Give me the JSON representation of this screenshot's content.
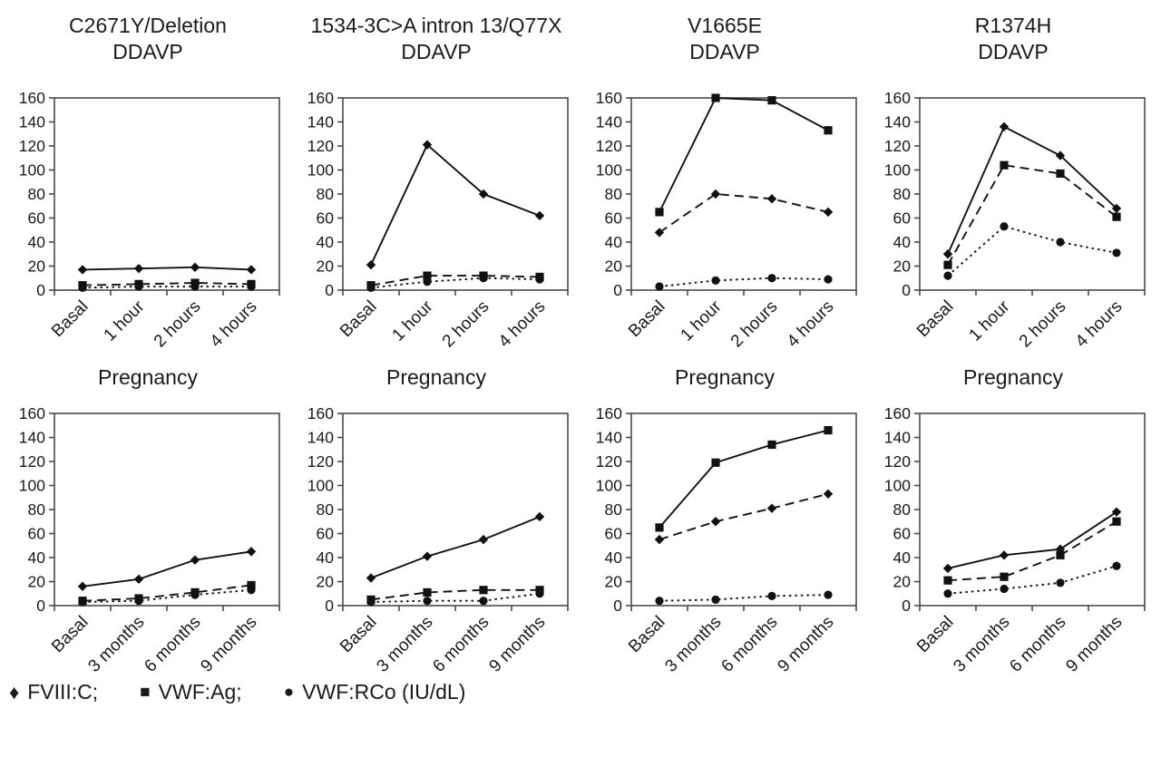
{
  "figure": {
    "background": "#ffffff",
    "text_color": "#1a1a1a",
    "axis_color": "#4a4a4a",
    "series_color": "#111111"
  },
  "legend": {
    "position": "bottom-left",
    "items": [
      {
        "glyph": "♦",
        "marker": "diamond",
        "label": "FVIII:C;"
      },
      {
        "glyph": "■",
        "marker": "square",
        "label": "VWF:Ag;"
      },
      {
        "glyph": "●",
        "marker": "circle",
        "label": "VWF:RCo (IU/dL)"
      }
    ]
  },
  "chart_data": [
    {
      "type": "line",
      "title_lines": [
        "C2671Y/Deletion",
        "DDAVP"
      ],
      "categories": [
        "Basal",
        "1 hour",
        "2 hours",
        "4 hours"
      ],
      "ylim": [
        0,
        160
      ],
      "ytick_step": 20,
      "grid": false,
      "series": [
        {
          "name": "FVIII:C",
          "marker": "diamond",
          "line": "solid",
          "values": [
            17,
            18,
            19,
            17
          ]
        },
        {
          "name": "VWF:Ag",
          "marker": "square",
          "line": "dashed",
          "values": [
            4,
            5,
            6,
            5
          ]
        },
        {
          "name": "VWF:RCo",
          "marker": "circle",
          "line": "dotted",
          "values": [
            2,
            3,
            3,
            3
          ]
        }
      ]
    },
    {
      "type": "line",
      "title_lines": [
        "1534-3C>A intron 13/Q77X",
        "DDAVP"
      ],
      "categories": [
        "Basal",
        "1 hour",
        "2 hours",
        "4 hours"
      ],
      "ylim": [
        0,
        160
      ],
      "ytick_step": 20,
      "grid": false,
      "series": [
        {
          "name": "FVIII:C",
          "marker": "diamond",
          "line": "solid",
          "values": [
            21,
            121,
            80,
            62
          ]
        },
        {
          "name": "VWF:Ag",
          "marker": "square",
          "line": "dashed",
          "values": [
            4,
            12,
            12,
            11
          ]
        },
        {
          "name": "VWF:RCo",
          "marker": "circle",
          "line": "dotted",
          "values": [
            2,
            7,
            10,
            9
          ]
        }
      ]
    },
    {
      "type": "line",
      "title_lines": [
        "V1665E",
        "DDAVP"
      ],
      "categories": [
        "Basal",
        "1 hour",
        "2 hours",
        "4 hours"
      ],
      "ylim": [
        0,
        160
      ],
      "ytick_step": 20,
      "grid": false,
      "series": [
        {
          "name": "VWF:Ag",
          "marker": "square",
          "line": "solid",
          "values": [
            65,
            160,
            158,
            133
          ]
        },
        {
          "name": "FVIII:C",
          "marker": "diamond",
          "line": "dashed",
          "values": [
            48,
            80,
            76,
            65
          ]
        },
        {
          "name": "VWF:RCo",
          "marker": "circle",
          "line": "dotted",
          "values": [
            3,
            8,
            10,
            9
          ]
        }
      ]
    },
    {
      "type": "line",
      "title_lines": [
        "R1374H",
        "DDAVP"
      ],
      "categories": [
        "Basal",
        "1 hour",
        "2 hours",
        "4 hours"
      ],
      "ylim": [
        0,
        160
      ],
      "ytick_step": 20,
      "grid": false,
      "series": [
        {
          "name": "FVIII:C",
          "marker": "diamond",
          "line": "solid",
          "values": [
            30,
            136,
            112,
            68
          ]
        },
        {
          "name": "VWF:Ag",
          "marker": "square",
          "line": "dashed",
          "values": [
            21,
            104,
            97,
            61
          ]
        },
        {
          "name": "VWF:RCo",
          "marker": "circle",
          "line": "dotted",
          "values": [
            12,
            53,
            40,
            31
          ]
        }
      ]
    },
    {
      "type": "line",
      "title_lines": [
        "Pregnancy"
      ],
      "categories": [
        "Basal",
        "3 months",
        "6 months",
        "9 months"
      ],
      "ylim": [
        0,
        160
      ],
      "ytick_step": 20,
      "grid": false,
      "series": [
        {
          "name": "FVIII:C",
          "marker": "diamond",
          "line": "solid",
          "values": [
            16,
            22,
            38,
            45
          ]
        },
        {
          "name": "VWF:Ag",
          "marker": "square",
          "line": "dashed",
          "values": [
            4,
            6,
            11,
            17
          ]
        },
        {
          "name": "VWF:RCo",
          "marker": "circle",
          "line": "dotted",
          "values": [
            3,
            4,
            9,
            13
          ]
        }
      ]
    },
    {
      "type": "line",
      "title_lines": [
        "Pregnancy"
      ],
      "categories": [
        "Basal",
        "3 months",
        "6 months",
        "9 months"
      ],
      "ylim": [
        0,
        160
      ],
      "ytick_step": 20,
      "grid": false,
      "series": [
        {
          "name": "FVIII:C",
          "marker": "diamond",
          "line": "solid",
          "values": [
            23,
            41,
            55,
            74
          ]
        },
        {
          "name": "VWF:Ag",
          "marker": "square",
          "line": "dashed",
          "values": [
            5,
            11,
            13,
            13
          ]
        },
        {
          "name": "VWF:RCo",
          "marker": "circle",
          "line": "dotted",
          "values": [
            3,
            4,
            4,
            10
          ]
        }
      ]
    },
    {
      "type": "line",
      "title_lines": [
        "Pregnancy"
      ],
      "categories": [
        "Basal",
        "3 months",
        "6 months",
        "9 months"
      ],
      "ylim": [
        0,
        160
      ],
      "ytick_step": 20,
      "grid": false,
      "series": [
        {
          "name": "VWF:Ag",
          "marker": "square",
          "line": "solid",
          "values": [
            65,
            119,
            134,
            146
          ]
        },
        {
          "name": "FVIII:C",
          "marker": "diamond",
          "line": "dashed",
          "values": [
            55,
            70,
            81,
            93
          ]
        },
        {
          "name": "VWF:RCo",
          "marker": "circle",
          "line": "dotted",
          "values": [
            4,
            5,
            8,
            9
          ]
        }
      ]
    },
    {
      "type": "line",
      "title_lines": [
        "Pregnancy"
      ],
      "categories": [
        "Basal",
        "3 months",
        "6 months",
        "9 months"
      ],
      "ylim": [
        0,
        160
      ],
      "ytick_step": 20,
      "grid": false,
      "series": [
        {
          "name": "FVIII:C",
          "marker": "diamond",
          "line": "solid",
          "values": [
            31,
            42,
            47,
            78
          ]
        },
        {
          "name": "VWF:Ag",
          "marker": "square",
          "line": "dashed",
          "values": [
            21,
            24,
            42,
            70
          ]
        },
        {
          "name": "VWF:RCo",
          "marker": "circle",
          "line": "dotted",
          "values": [
            10,
            14,
            19,
            33
          ]
        }
      ]
    }
  ]
}
